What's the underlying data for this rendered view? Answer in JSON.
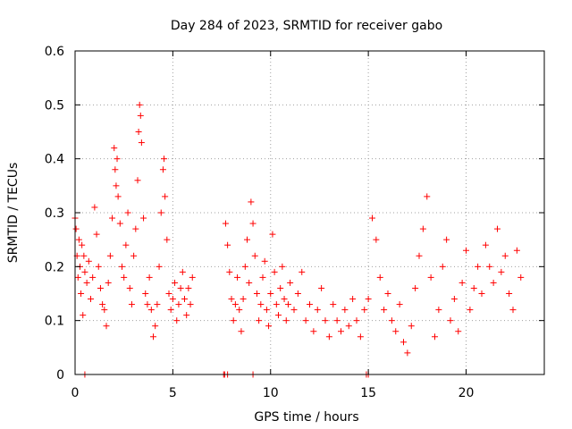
{
  "chart_data": {
    "type": "scatter",
    "title": "Day 284 of 2023, SRMTID for receiver gabo",
    "xlabel": "GPS time / hours",
    "ylabel": "SRMTID / TECUs",
    "xlim": [
      0,
      24
    ],
    "ylim": [
      0,
      0.6
    ],
    "x_ticks": [
      0,
      5,
      10,
      15,
      20
    ],
    "x_tick_labels": [
      "0",
      "5",
      "10",
      "15",
      "20"
    ],
    "y_ticks": [
      0,
      0.1,
      0.2,
      0.3,
      0.4,
      0.5,
      0.6
    ],
    "y_tick_labels": [
      "0",
      "0.1",
      "0.2",
      "0.3",
      "0.4",
      "0.5",
      "0.6"
    ],
    "grid": true,
    "marker": "+",
    "color": "#ff0000",
    "series": [
      {
        "name": "SRMTID",
        "x": [
          0.0,
          0.05,
          0.1,
          0.15,
          0.2,
          0.25,
          0.3,
          0.35,
          0.4,
          0.45,
          0.5,
          0.6,
          0.7,
          0.8,
          0.9,
          1.0,
          1.1,
          1.2,
          1.3,
          1.4,
          1.5,
          1.6,
          1.7,
          1.8,
          1.9,
          2.0,
          2.05,
          2.1,
          2.15,
          2.2,
          2.3,
          2.4,
          2.5,
          2.6,
          2.7,
          2.8,
          2.9,
          3.0,
          3.1,
          3.2,
          3.25,
          3.3,
          3.35,
          3.4,
          3.5,
          3.6,
          3.7,
          3.8,
          3.9,
          4.0,
          4.1,
          4.2,
          4.3,
          4.4,
          4.5,
          4.55,
          4.6,
          4.7,
          4.8,
          4.9,
          5.0,
          5.1,
          5.2,
          5.3,
          5.4,
          5.5,
          5.6,
          5.7,
          5.8,
          5.9,
          6.0,
          7.7,
          7.8,
          7.9,
          8.0,
          8.1,
          8.2,
          8.3,
          8.4,
          8.5,
          8.6,
          8.7,
          8.8,
          8.9,
          9.0,
          9.1,
          9.2,
          9.3,
          9.4,
          9.5,
          9.6,
          9.7,
          9.8,
          9.9,
          10.0,
          10.1,
          10.2,
          10.3,
          10.4,
          10.5,
          10.6,
          10.7,
          10.8,
          10.9,
          11.0,
          11.2,
          11.4,
          11.6,
          11.8,
          12.0,
          12.2,
          12.4,
          12.6,
          12.8,
          13.0,
          13.2,
          13.4,
          13.6,
          13.8,
          14.0,
          14.2,
          14.4,
          14.6,
          14.8,
          15.0,
          15.2,
          15.4,
          15.6,
          15.8,
          16.0,
          16.2,
          16.4,
          16.6,
          16.8,
          17.0,
          17.2,
          17.4,
          17.6,
          17.8,
          18.0,
          18.2,
          18.4,
          18.6,
          18.8,
          19.0,
          19.2,
          19.4,
          19.6,
          19.8,
          20.0,
          20.2,
          20.4,
          20.6,
          20.8,
          21.0,
          21.2,
          21.4,
          21.6,
          21.8,
          22.0,
          22.2,
          22.4,
          22.6,
          22.8,
          0.5,
          7.6,
          7.65,
          7.8,
          9.1,
          14.9,
          15.0
        ],
        "y": [
          0.29,
          0.27,
          0.22,
          0.18,
          0.25,
          0.2,
          0.15,
          0.24,
          0.11,
          0.22,
          0.19,
          0.17,
          0.21,
          0.14,
          0.18,
          0.31,
          0.26,
          0.2,
          0.16,
          0.13,
          0.12,
          0.09,
          0.17,
          0.22,
          0.29,
          0.42,
          0.38,
          0.35,
          0.4,
          0.33,
          0.28,
          0.2,
          0.18,
          0.24,
          0.3,
          0.16,
          0.13,
          0.22,
          0.27,
          0.36,
          0.45,
          0.5,
          0.48,
          0.43,
          0.29,
          0.15,
          0.13,
          0.18,
          0.12,
          0.07,
          0.09,
          0.13,
          0.2,
          0.3,
          0.38,
          0.4,
          0.33,
          0.25,
          0.15,
          0.12,
          0.14,
          0.17,
          0.1,
          0.13,
          0.16,
          0.19,
          0.14,
          0.11,
          0.16,
          0.13,
          0.18,
          0.28,
          0.24,
          0.19,
          0.14,
          0.1,
          0.13,
          0.18,
          0.12,
          0.08,
          0.14,
          0.2,
          0.25,
          0.17,
          0.32,
          0.28,
          0.22,
          0.15,
          0.1,
          0.13,
          0.18,
          0.21,
          0.12,
          0.09,
          0.15,
          0.26,
          0.19,
          0.13,
          0.11,
          0.16,
          0.2,
          0.14,
          0.1,
          0.13,
          0.17,
          0.12,
          0.15,
          0.19,
          0.1,
          0.13,
          0.08,
          0.12,
          0.16,
          0.1,
          0.07,
          0.13,
          0.1,
          0.08,
          0.12,
          0.09,
          0.14,
          0.1,
          0.07,
          0.12,
          0.14,
          0.29,
          0.25,
          0.18,
          0.12,
          0.15,
          0.1,
          0.08,
          0.13,
          0.06,
          0.04,
          0.09,
          0.16,
          0.22,
          0.27,
          0.33,
          0.18,
          0.07,
          0.12,
          0.2,
          0.25,
          0.1,
          0.14,
          0.08,
          0.17,
          0.23,
          0.12,
          0.16,
          0.2,
          0.15,
          0.24,
          0.2,
          0.17,
          0.27,
          0.19,
          0.22,
          0.15,
          0.12,
          0.23,
          0.18,
          0.0,
          0.0,
          0.0,
          0.0,
          0.0,
          0.0,
          0.0
        ]
      }
    ]
  }
}
